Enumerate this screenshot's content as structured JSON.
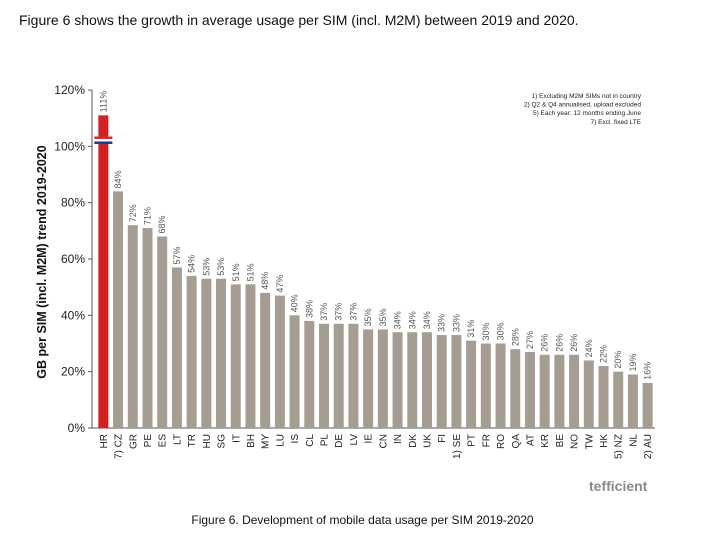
{
  "intro_text": "Figure 6 shows the growth in average usage per SIM (incl. M2M) between 2019 and 2020.",
  "caption": "Figure 6. Development of mobile data usage per SIM 2019-2020",
  "brand": {
    "name": "tefficient"
  },
  "chart_data": {
    "type": "bar",
    "ylabel": "GB per SIM (incl. M2M) trend 2019-2020",
    "xlabel": "",
    "ylim": [
      0,
      120
    ],
    "yticks": [
      0,
      20,
      40,
      60,
      80,
      100,
      120
    ],
    "ytick_labels": [
      "0%",
      "20%",
      "40%",
      "60%",
      "80%",
      "100%",
      "120%"
    ],
    "grid": false,
    "categories": [
      "HR",
      "7) CZ",
      "GR",
      "PE",
      "ES",
      "LT",
      "TR",
      "HU",
      "SG",
      "IT",
      "BH",
      "MY",
      "LU",
      "IS",
      "CL",
      "PL",
      "DE",
      "LV",
      "IE",
      "CN",
      "IN",
      "DK",
      "UK",
      "FI",
      "1) SE",
      "PT",
      "FR",
      "RO",
      "QA",
      "AT",
      "KR",
      "BE",
      "NO",
      "TW",
      "HK",
      "5) NZ",
      "NL",
      "2) AU"
    ],
    "values": [
      111,
      84,
      72,
      71,
      68,
      57,
      54,
      53,
      53,
      51,
      51,
      48,
      47,
      40,
      38,
      37,
      37,
      37,
      35,
      35,
      34,
      34,
      34,
      33,
      33,
      31,
      30,
      30,
      28,
      27,
      26,
      26,
      26,
      24,
      22,
      20,
      19,
      16
    ],
    "value_labels": [
      "111%",
      "84%",
      "72%",
      "71%",
      "68%",
      "57%",
      "54%",
      "53%",
      "53%",
      "51%",
      "51%",
      "48%",
      "47%",
      "40%",
      "38%",
      "37%",
      "37%",
      "37%",
      "35%",
      "35%",
      "34%",
      "34%",
      "34%",
      "33%",
      "33%",
      "31%",
      "30%",
      "30%",
      "28%",
      "27%",
      "26%",
      "26%",
      "26%",
      "24%",
      "22%",
      "20%",
      "19%",
      "16%"
    ],
    "highlight": {
      "category": "HR",
      "color": "#d42020"
    },
    "bar_color": "#a59d91",
    "notes": [
      "1) Excluding M2M SIMs not in country",
      "2) Q2 & Q4 annualised, upload excluded",
      "5) Each year: 12 months ending June",
      "7) Excl. fixed LTE"
    ]
  }
}
